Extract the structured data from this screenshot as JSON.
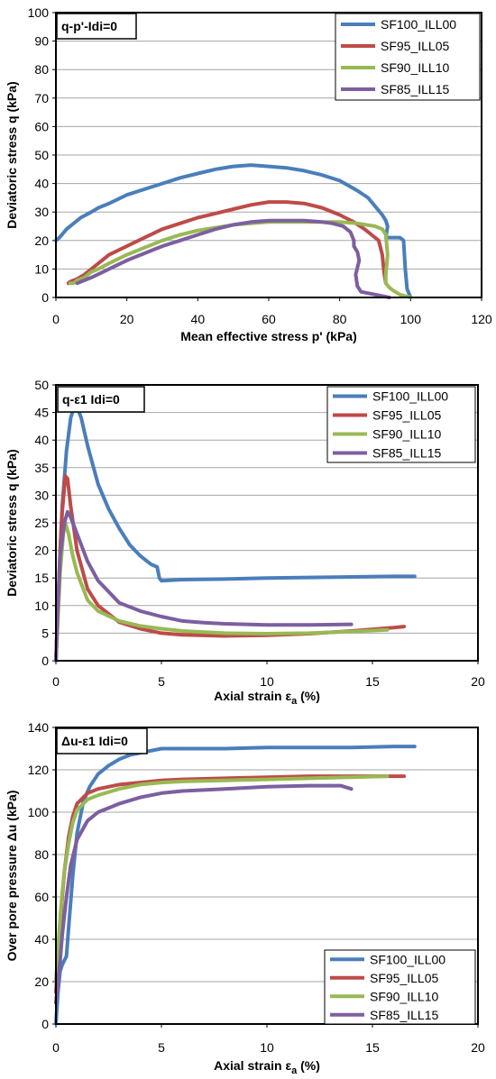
{
  "chart_data": [
    {
      "type": "line",
      "panel_label": "q-p'-Idi=0",
      "xlabel": "Mean effective stress p' (kPa)",
      "ylabel": "Deviatoric stress q (kPa)",
      "xlim": [
        0,
        120
      ],
      "ylim": [
        0,
        100
      ],
      "x_ticks": [
        "0",
        "20",
        "40",
        "60",
        "80",
        "100",
        "120"
      ],
      "y_ticks": [
        "0",
        "10",
        "20",
        "30",
        "40",
        "50",
        "60",
        "70",
        "80",
        "90",
        "100"
      ],
      "grid": true,
      "legend_position": "top-right",
      "series": [
        {
          "name": "SF100_ILL00",
          "color": "#4a7ebb",
          "x": [
            100,
            99,
            98.5,
            98,
            97,
            95,
            93,
            93.5,
            93,
            92,
            90,
            88,
            85,
            80,
            75,
            70,
            65,
            60,
            55,
            50,
            45,
            40,
            35,
            30,
            25,
            20,
            15,
            12,
            10,
            7,
            5,
            3,
            1,
            0
          ],
          "y": [
            0,
            3,
            10,
            20,
            21,
            21,
            21,
            25,
            27,
            29,
            32,
            35,
            37.5,
            41,
            43,
            44.5,
            45.5,
            46,
            46.5,
            46,
            45,
            43.5,
            42,
            40,
            38,
            36,
            33,
            31.5,
            30,
            28,
            26,
            24,
            21,
            20
          ]
        },
        {
          "name": "SF95_ILL05",
          "color": "#be4b48",
          "x": [
            93,
            92.5,
            92,
            91,
            89,
            87,
            84,
            80,
            75,
            70,
            65,
            60,
            55,
            50,
            45,
            40,
            35,
            30,
            25,
            20,
            15,
            12,
            10,
            8,
            6,
            5,
            4,
            3.5
          ],
          "y": [
            5,
            9,
            15,
            20,
            22,
            24,
            26.5,
            29,
            31.5,
            33,
            33.5,
            33.5,
            32.5,
            31,
            29.5,
            28,
            26,
            24,
            21,
            18,
            15,
            12,
            10,
            8,
            6.5,
            6,
            5.5,
            5
          ]
        },
        {
          "name": "SF90_ILL10",
          "color": "#98b954",
          "x": [
            100,
            97,
            95,
            94,
            93,
            93,
            93.5,
            93,
            92,
            90,
            85,
            80,
            75,
            70,
            65,
            60,
            55,
            50,
            45,
            40,
            35,
            30,
            25,
            20,
            15,
            12,
            10,
            8,
            6,
            5,
            4
          ],
          "y": [
            0,
            1,
            2.5,
            3.5,
            5,
            8,
            15,
            22,
            24,
            25,
            26,
            26.5,
            26.5,
            26.5,
            26.5,
            26.5,
            26,
            25.5,
            24.5,
            23.5,
            22,
            20,
            17.5,
            15,
            12,
            10,
            9,
            7,
            6,
            5,
            5
          ]
        },
        {
          "name": "SF85_ILL15",
          "color": "#7d5fa0",
          "x": [
            94,
            90,
            86,
            85,
            84.5,
            85.5,
            85,
            84,
            84,
            83,
            81,
            78,
            75,
            70,
            65,
            60,
            55,
            50,
            45,
            40,
            35,
            30,
            25,
            20,
            15,
            10,
            8,
            6
          ],
          "y": [
            0,
            1,
            2,
            4,
            8,
            13,
            16,
            18,
            20,
            23,
            25,
            26,
            26.5,
            27,
            27,
            27,
            26.5,
            25.5,
            24,
            22,
            20,
            18,
            15.5,
            13,
            10,
            7,
            6,
            5
          ]
        }
      ]
    },
    {
      "type": "line",
      "panel_label": "q-ε1 Idi=0",
      "xlabel": "Axial strain εa (%)",
      "ylabel": "Deviatoric stress q (kPa)",
      "xlim": [
        0,
        20
      ],
      "ylim": [
        0,
        50
      ],
      "x_ticks": [
        "0",
        "5",
        "10",
        "15",
        "20"
      ],
      "y_ticks": [
        "0",
        "5",
        "10",
        "15",
        "20",
        "25",
        "30",
        "35",
        "40",
        "45",
        "50"
      ],
      "grid": true,
      "legend_position": "top-right",
      "series": [
        {
          "name": "SF100_ILL00",
          "color": "#4a7ebb",
          "x": [
            0,
            0.1,
            0.2,
            0.3,
            0.5,
            0.7,
            0.9,
            1.0,
            1.2,
            1.5,
            2.0,
            2.5,
            3.0,
            3.5,
            4.0,
            4.5,
            4.8,
            4.9,
            5.0,
            6,
            8,
            10,
            12,
            14,
            16,
            17
          ],
          "y": [
            0,
            10,
            20,
            28,
            38,
            44,
            46.5,
            46,
            44,
            39,
            32,
            27.5,
            24,
            21,
            19,
            17.5,
            17,
            15,
            14.5,
            14.7,
            14.8,
            15,
            15.1,
            15.2,
            15.3,
            15.3
          ]
        },
        {
          "name": "SF95_ILL05",
          "color": "#be4b48",
          "x": [
            0,
            0.1,
            0.2,
            0.3,
            0.45,
            0.55,
            0.7,
            1.0,
            1.5,
            2.0,
            3.0,
            4.0,
            5.0,
            6,
            8,
            10,
            12,
            14,
            16,
            16.5
          ],
          "y": [
            0,
            10,
            20,
            27,
            33.5,
            33,
            28,
            20,
            13,
            10,
            7,
            5.8,
            5,
            4.7,
            4.5,
            4.6,
            4.9,
            5.4,
            6.0,
            6.2
          ]
        },
        {
          "name": "SF90_ILL10",
          "color": "#98b954",
          "x": [
            0,
            0.1,
            0.2,
            0.35,
            0.45,
            0.6,
            0.8,
            1.0,
            1.5,
            2.0,
            3.0,
            4.0,
            5.0,
            6,
            8,
            10,
            12,
            14,
            15.7
          ],
          "y": [
            0,
            8,
            16,
            23,
            25,
            23,
            19,
            16,
            11,
            9,
            7.2,
            6.3,
            5.8,
            5.4,
            5.0,
            4.9,
            5.0,
            5.3,
            5.6
          ]
        },
        {
          "name": "SF85_ILL15",
          "color": "#7d5fa0",
          "x": [
            0,
            0.1,
            0.2,
            0.4,
            0.55,
            0.7,
            1.0,
            1.5,
            2.0,
            3.0,
            4.0,
            5.0,
            6,
            7,
            8,
            10,
            12,
            14
          ],
          "y": [
            0,
            10,
            19,
            25,
            27,
            26,
            23,
            18,
            14.5,
            10.5,
            9,
            8,
            7.2,
            6.9,
            6.7,
            6.5,
            6.5,
            6.6
          ]
        }
      ]
    },
    {
      "type": "line",
      "panel_label": "Δu-ε1 Idi=0",
      "xlabel": "Axial strain εa (%)",
      "ylabel": "Over pore pressure Δu (kPa)",
      "xlim": [
        0,
        20
      ],
      "ylim": [
        0,
        140
      ],
      "x_ticks": [
        "0",
        "5",
        "10",
        "15",
        "20"
      ],
      "y_ticks": [
        "0",
        "20",
        "40",
        "60",
        "80",
        "100",
        "120",
        "140"
      ],
      "grid": true,
      "legend_position": "bottom-right",
      "series": [
        {
          "name": "SF100_ILL00",
          "color": "#4a7ebb",
          "x": [
            0,
            0.1,
            0.2,
            0.3,
            0.5,
            0.6,
            0.8,
            1.0,
            1.3,
            1.6,
            2.0,
            2.5,
            3.0,
            3.5,
            4.0,
            5.0,
            6,
            8,
            10,
            12,
            14,
            16,
            17
          ],
          "y": [
            0,
            15,
            25,
            28,
            32,
            45,
            70,
            90,
            105,
            112,
            118,
            122,
            125,
            127,
            128,
            130,
            130,
            130,
            130.5,
            130.5,
            130.5,
            131,
            131
          ]
        },
        {
          "name": "SF95_ILL05",
          "color": "#be4b48",
          "x": [
            0,
            0.1,
            0.2,
            0.3,
            0.4,
            0.6,
            0.8,
            1.0,
            1.5,
            2.0,
            3.0,
            4.0,
            5.0,
            6,
            8,
            10,
            12,
            14,
            16,
            16.5
          ],
          "y": [
            15,
            30,
            45,
            60,
            72,
            88,
            98,
            104,
            109,
            111,
            113,
            114,
            115,
            115.5,
            116,
            116.5,
            117,
            117,
            117,
            117
          ]
        },
        {
          "name": "SF90_ILL10",
          "color": "#98b954",
          "x": [
            0,
            0.1,
            0.2,
            0.3,
            0.4,
            0.6,
            0.8,
            1.0,
            1.5,
            2.0,
            3.0,
            4.0,
            5.0,
            6,
            8,
            10,
            12,
            14,
            15.7
          ],
          "y": [
            20,
            35,
            50,
            62,
            72,
            85,
            95,
            101,
            106,
            108,
            111,
            113,
            114,
            114.5,
            115,
            115.5,
            116,
            116.5,
            117
          ]
        },
        {
          "name": "SF85_ILL15",
          "color": "#7d5fa0",
          "x": [
            0,
            0.1,
            0.2,
            0.3,
            0.5,
            0.7,
            1.0,
            1.5,
            2.0,
            3.0,
            4.0,
            5.0,
            6,
            8,
            10,
            12,
            13.5,
            14
          ],
          "y": [
            10,
            20,
            30,
            42,
            60,
            75,
            87,
            96,
            100,
            104,
            107,
            109,
            110,
            111,
            112,
            112.5,
            112.5,
            111
          ]
        }
      ]
    }
  ]
}
